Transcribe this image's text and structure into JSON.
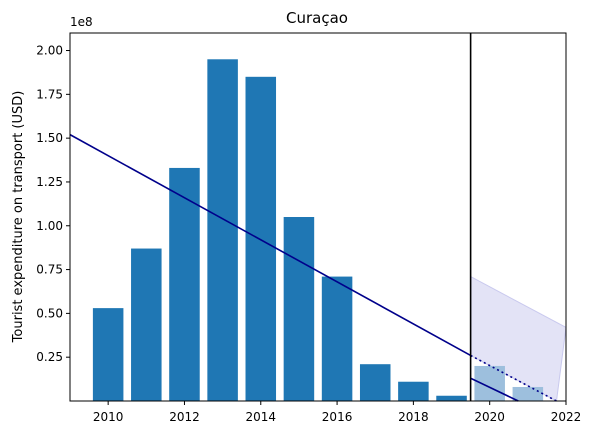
{
  "chart_data": {
    "type": "bar",
    "title": "Curaçao",
    "ylabel": "Tourist expenditure on transport (USD)",
    "xlabel": "",
    "y_multiplier_label": "1e8",
    "xlim": [
      2009,
      2022
    ],
    "ylim": [
      0,
      2.1
    ],
    "x_ticks": [
      2010,
      2012,
      2014,
      2016,
      2018,
      2020,
      2022
    ],
    "x_tick_labels": [
      "2010",
      "2012",
      "2014",
      "2016",
      "2018",
      "2020",
      "2022"
    ],
    "y_ticks": [
      0.25,
      0.5,
      0.75,
      1.0,
      1.25,
      1.5,
      1.75,
      2.0
    ],
    "y_tick_labels": [
      "0.25",
      "0.50",
      "0.75",
      "1.00",
      "1.25",
      "1.50",
      "1.75",
      "2.00"
    ],
    "bars": [
      {
        "x": 2010,
        "value": 0.53
      },
      {
        "x": 2011,
        "value": 0.87
      },
      {
        "x": 2012,
        "value": 1.33
      },
      {
        "x": 2013,
        "value": 1.95
      },
      {
        "x": 2014,
        "value": 1.85
      },
      {
        "x": 2015,
        "value": 1.05
      },
      {
        "x": 2016,
        "value": 0.71
      },
      {
        "x": 2017,
        "value": 0.21
      },
      {
        "x": 2018,
        "value": 0.11
      },
      {
        "x": 2019,
        "value": 0.03
      }
    ],
    "projected_bars": [
      {
        "x": 2020,
        "value": 0.2
      },
      {
        "x": 2021,
        "value": 0.08
      }
    ],
    "trend_line": {
      "points": [
        [
          2009,
          1.52
        ],
        [
          2019.5,
          0.26
        ]
      ]
    },
    "post_cutoff_line": {
      "points": [
        [
          2019.5,
          0.13
        ],
        [
          2020.75,
          0.0
        ]
      ]
    },
    "projection_line": {
      "points": [
        [
          2019.5,
          0.26
        ],
        [
          2021.75,
          0.0
        ]
      ]
    },
    "projection_band": {
      "upper": [
        [
          2019.5,
          0.71
        ],
        [
          2022,
          0.42
        ]
      ],
      "lower": [
        [
          2019.5,
          0.26
        ],
        [
          2021.75,
          0.0
        ]
      ]
    },
    "cutoff_x": 2019.5,
    "colors": {
      "bar": "#1f77b4",
      "projected_bar": "#9dbfdd",
      "trend": "#00008b",
      "band": "#e3e3f6",
      "band_edge": "#c9c9ee",
      "cutoff": "#000000"
    }
  }
}
